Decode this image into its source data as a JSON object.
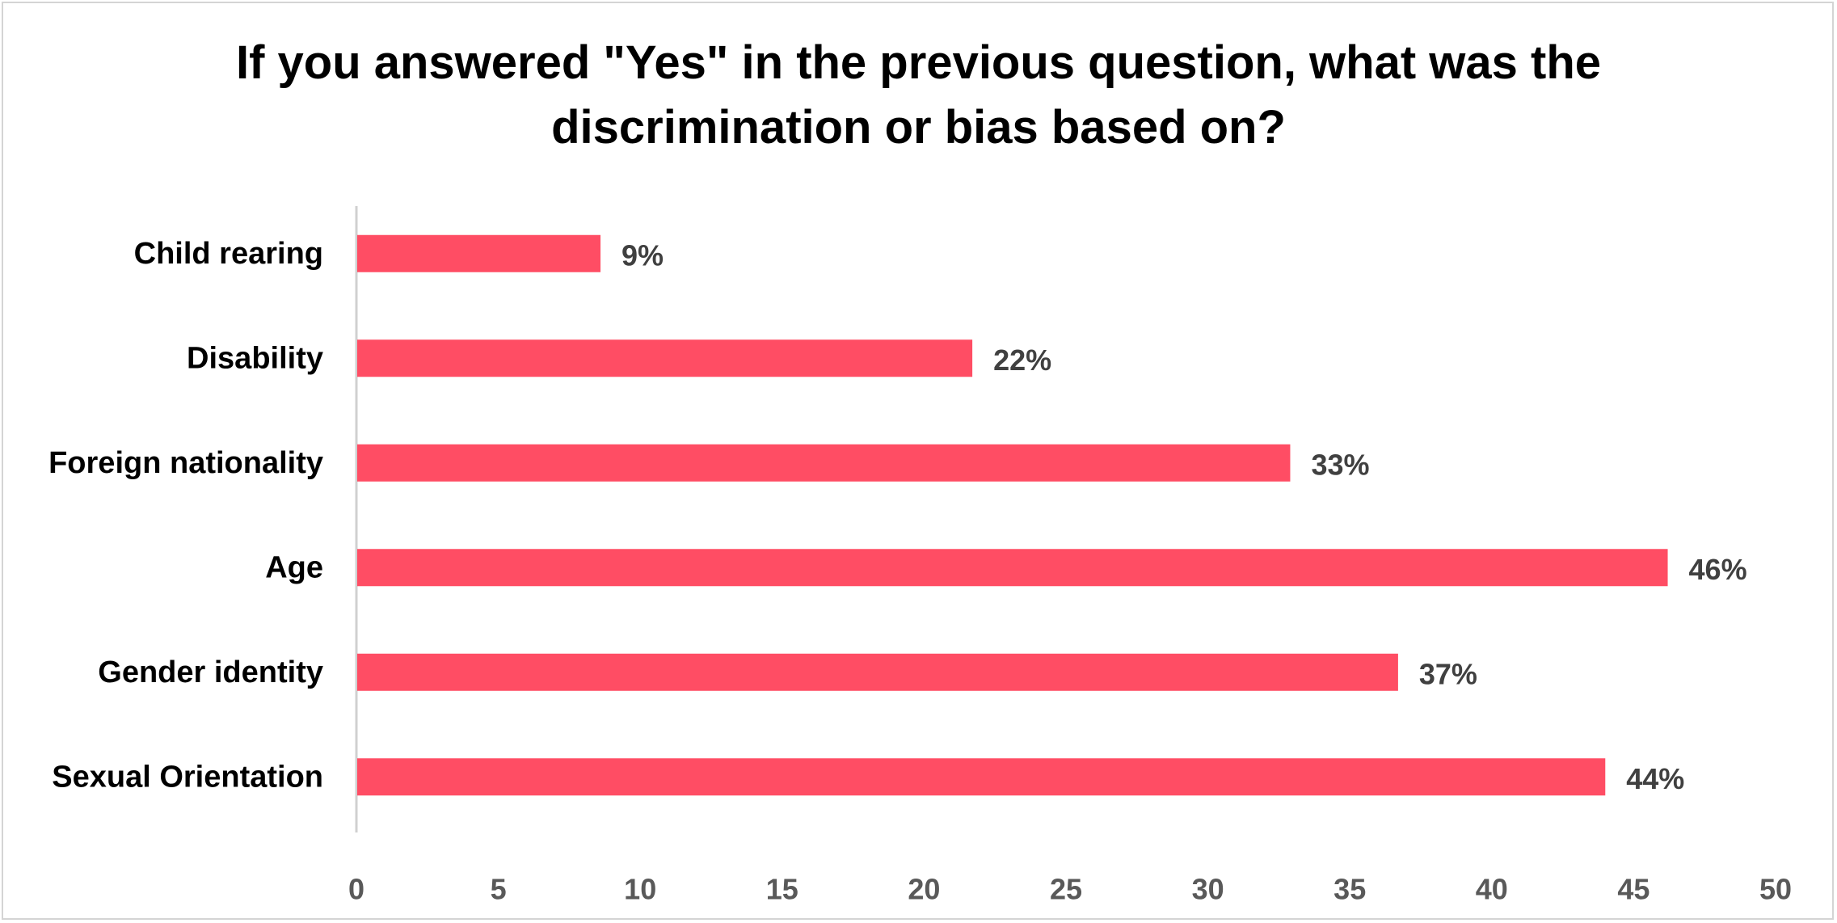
{
  "chart_data": {
    "type": "bar",
    "orientation": "horizontal",
    "title": "If you answered \"Yes\" in the previous question, what was the discrimination or bias based on?",
    "categories": [
      "Child rearing",
      "Disability",
      "Foreign nationality",
      "Age",
      "Gender identity",
      "Sexual Orientation"
    ],
    "values": [
      8.6,
      21.7,
      32.9,
      46.2,
      36.7,
      44.0
    ],
    "data_labels": [
      "9%",
      "22%",
      "33%",
      "46%",
      "37%",
      "44%"
    ],
    "xlim": [
      0,
      50
    ],
    "xticks": [
      "0",
      "5",
      "10",
      "15",
      "20",
      "25",
      "30",
      "35",
      "40",
      "45",
      "50"
    ],
    "xlabel": "",
    "ylabel": "",
    "grid": false,
    "legend": "none",
    "bar_color": "#ff4d64"
  }
}
